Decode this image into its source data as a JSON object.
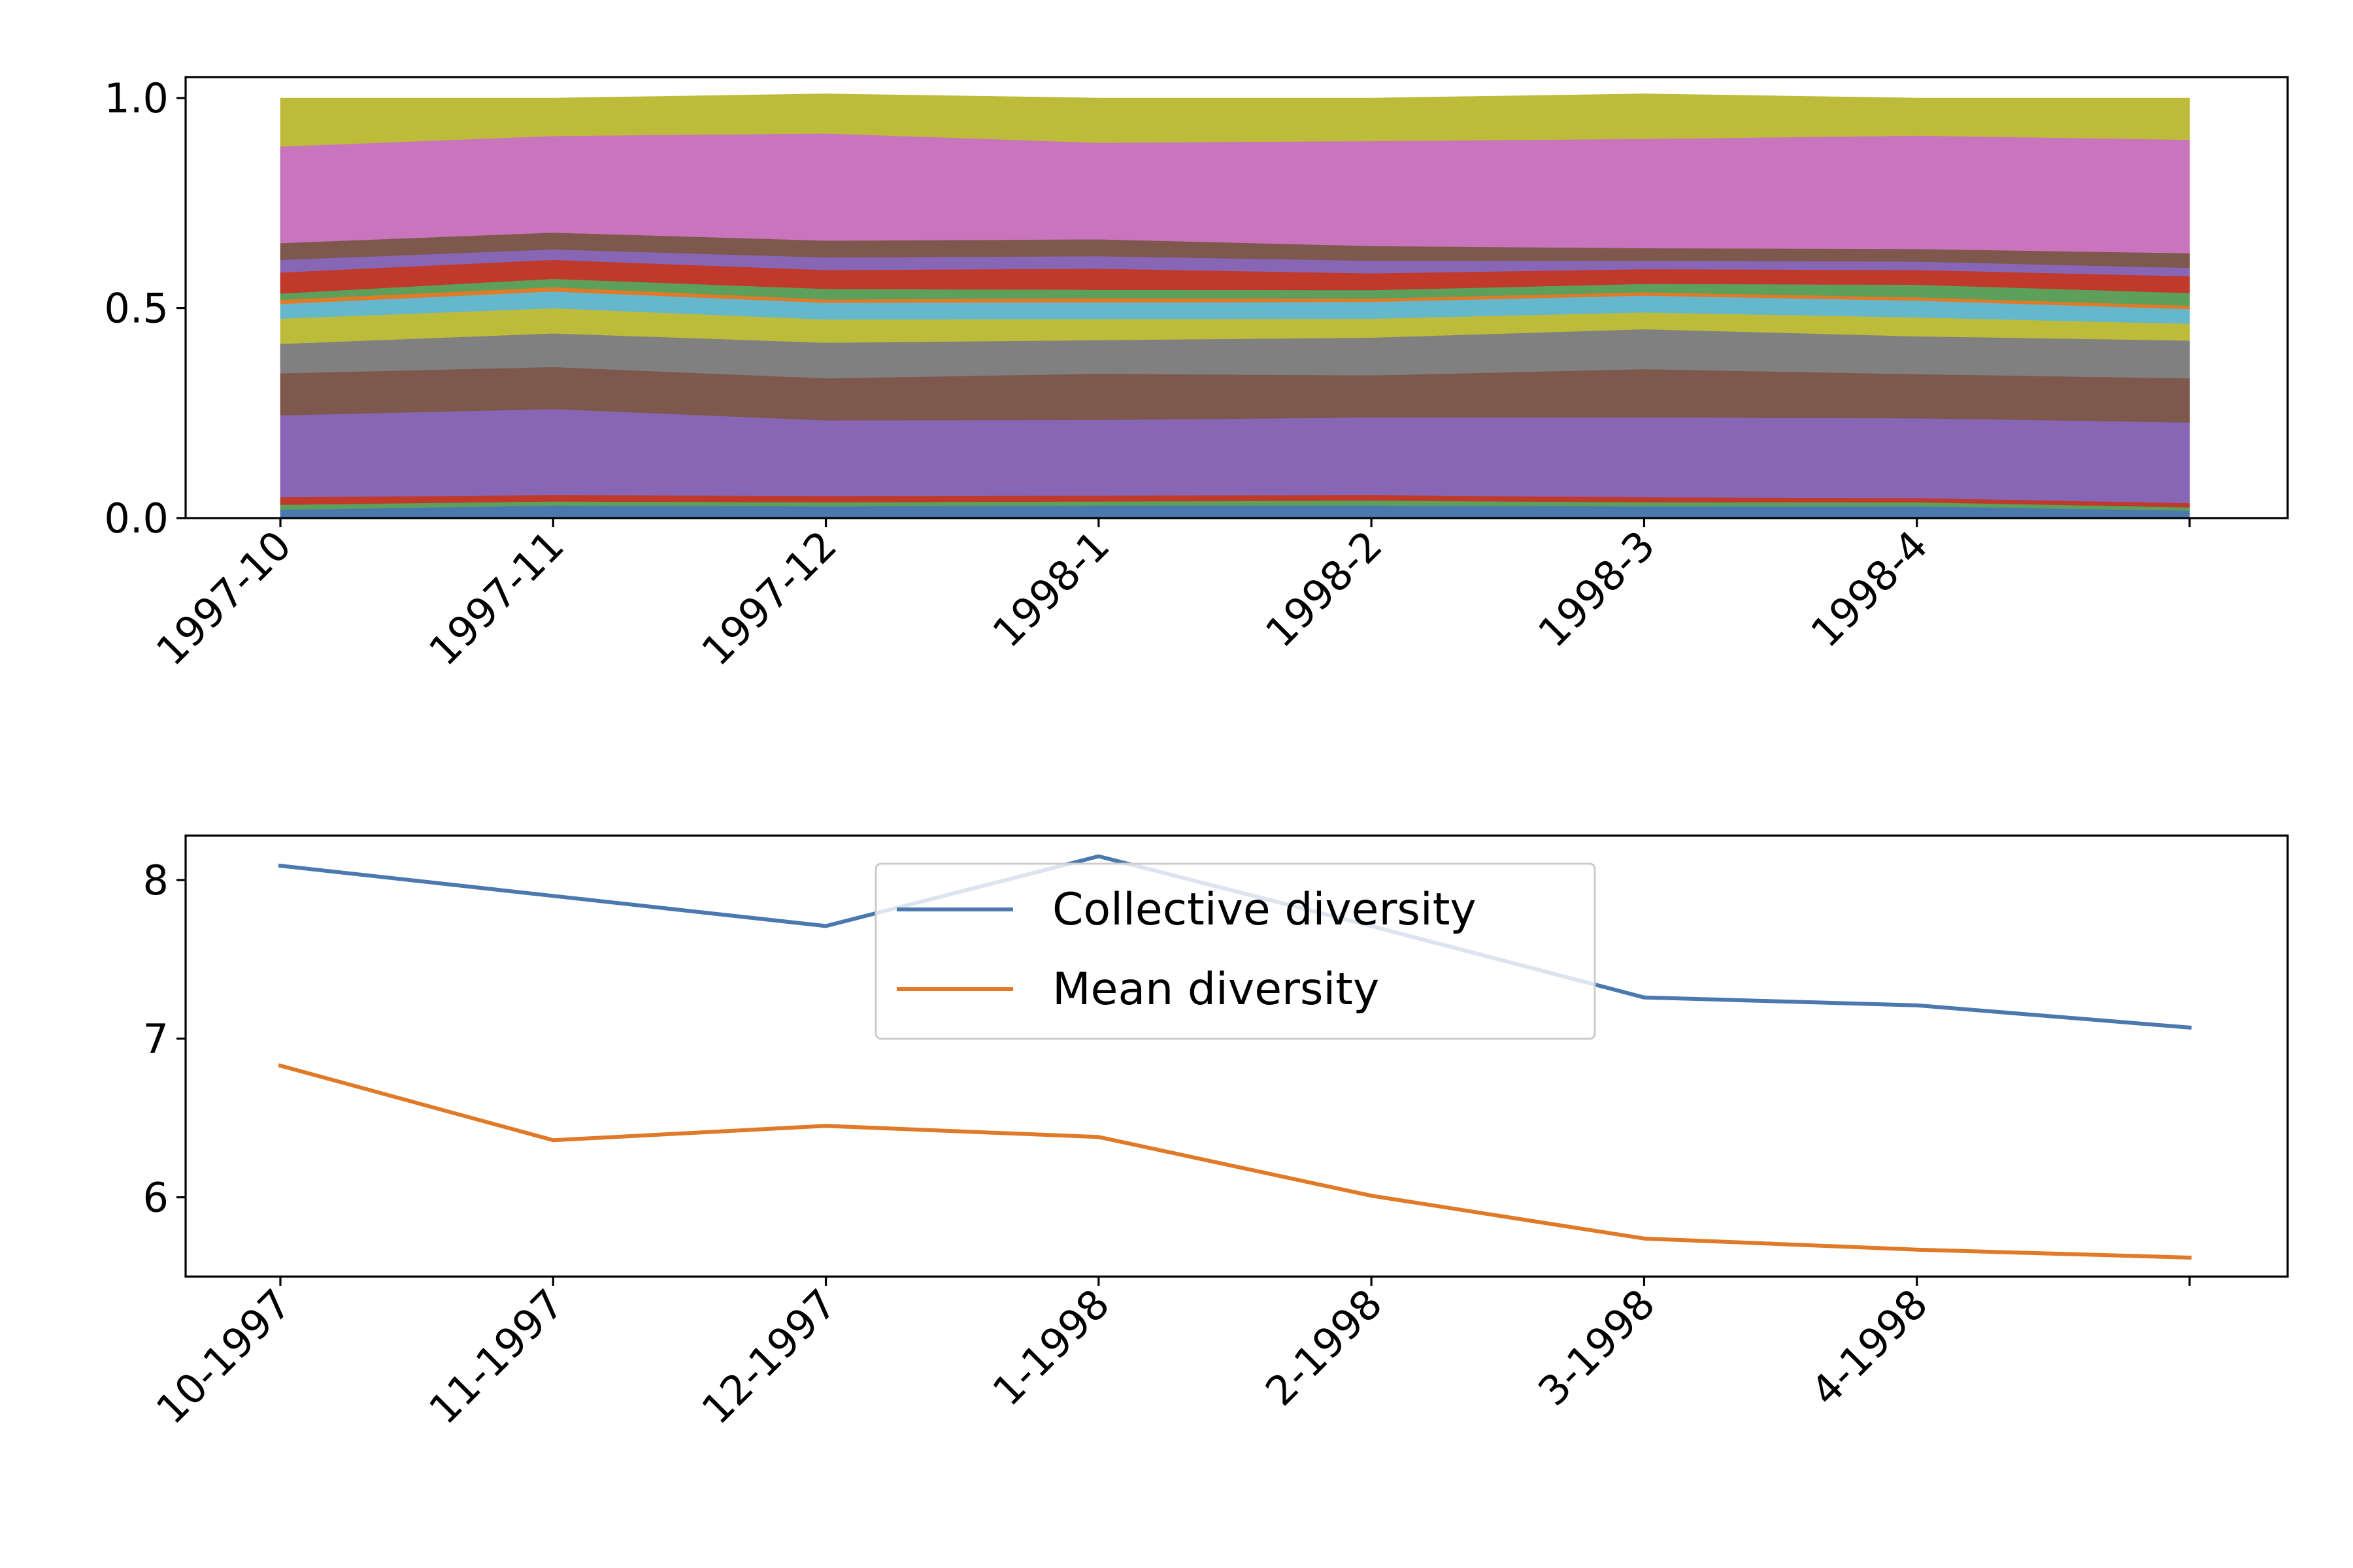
{
  "chart_data": [
    {
      "type": "area",
      "stacked": true,
      "x": [
        "1997-10",
        "1997-11",
        "1997-12",
        "1998-1",
        "1998-2",
        "1998-3",
        "1998-4",
        ""
      ],
      "xticks": [
        "1997-10",
        "1997-11",
        "1997-12",
        "1998-1",
        "1998-2",
        "1998-3",
        "1998-4",
        ""
      ],
      "ylim": [
        0,
        1.05
      ],
      "yticks": [
        0.0,
        0.5,
        1.0
      ],
      "ytick_labels": [
        "0.0",
        "0.5",
        "1.0"
      ],
      "grid": false,
      "series": [
        {
          "color": "#4c78b0",
          "values": [
            0.02,
            0.03,
            0.028,
            0.03,
            0.03,
            0.028,
            0.028,
            0.018
          ]
        },
        {
          "color": "#5ca05c",
          "values": [
            0.012,
            0.01,
            0.01,
            0.01,
            0.012,
            0.01,
            0.01,
            0.008
          ]
        },
        {
          "color": "#c0392b",
          "values": [
            0.018,
            0.015,
            0.015,
            0.014,
            0.013,
            0.012,
            0.01,
            0.01
          ]
        },
        {
          "color": "#8766b5",
          "values": [
            0.195,
            0.205,
            0.18,
            0.18,
            0.185,
            0.19,
            0.19,
            0.192
          ]
        },
        {
          "color": "#7e584c",
          "values": [
            0.1,
            0.1,
            0.1,
            0.11,
            0.1,
            0.115,
            0.105,
            0.105
          ]
        },
        {
          "color": "#808080",
          "values": [
            0.07,
            0.08,
            0.085,
            0.08,
            0.09,
            0.095,
            0.09,
            0.09
          ]
        },
        {
          "color": "#bdbb3a",
          "values": [
            0.06,
            0.06,
            0.055,
            0.05,
            0.045,
            0.04,
            0.045,
            0.04
          ]
        },
        {
          "color": "#65b8cc",
          "values": [
            0.035,
            0.04,
            0.04,
            0.04,
            0.04,
            0.04,
            0.04,
            0.035
          ]
        },
        {
          "color": "#e07a28",
          "values": [
            0.01,
            0.01,
            0.008,
            0.01,
            0.008,
            0.008,
            0.008,
            0.008
          ]
        },
        {
          "color": "#5ca05c",
          "values": [
            0.015,
            0.02,
            0.025,
            0.02,
            0.02,
            0.02,
            0.03,
            0.03
          ]
        },
        {
          "color": "#c0392b",
          "values": [
            0.05,
            0.045,
            0.045,
            0.05,
            0.04,
            0.035,
            0.035,
            0.04
          ]
        },
        {
          "color": "#8766b5",
          "values": [
            0.03,
            0.025,
            0.03,
            0.03,
            0.03,
            0.02,
            0.02,
            0.02
          ]
        },
        {
          "color": "#7e584c",
          "values": [
            0.04,
            0.04,
            0.04,
            0.04,
            0.035,
            0.03,
            0.03,
            0.035
          ]
        },
        {
          "color": "#c875bd",
          "values": [
            0.23,
            0.23,
            0.255,
            0.23,
            0.25,
            0.26,
            0.27,
            0.27
          ]
        },
        {
          "color": "#bdbb3a",
          "values": [
            0.115,
            0.09,
            0.094,
            0.106,
            0.102,
            0.107,
            0.089,
            0.099
          ]
        }
      ]
    },
    {
      "type": "line",
      "x": [
        "10-1997",
        "11-1997",
        "12-1997",
        "1-1998",
        "2-1998",
        "3-1998",
        "4-1998",
        ""
      ],
      "xticks": [
        "10-1997",
        "11-1997",
        "12-1997",
        "1-1998",
        "2-1998",
        "3-1998",
        "4-1998",
        ""
      ],
      "ylim": [
        5.5,
        8.28
      ],
      "yticks": [
        6,
        7,
        8
      ],
      "ytick_labels": [
        "6",
        "7",
        "8"
      ],
      "grid": false,
      "legend": {
        "location": "top-center",
        "entries": [
          "Collective diversity",
          "Mean diversity"
        ]
      },
      "series": [
        {
          "name": "Collective diversity",
          "color": "#4c78b0",
          "values": [
            8.09,
            7.9,
            7.71,
            8.15,
            7.71,
            7.26,
            7.21,
            7.07
          ]
        },
        {
          "name": "Mean diversity",
          "color": "#e07a28",
          "values": [
            6.83,
            6.36,
            6.45,
            6.38,
            6.01,
            5.74,
            5.67,
            5.62
          ]
        }
      ]
    }
  ]
}
